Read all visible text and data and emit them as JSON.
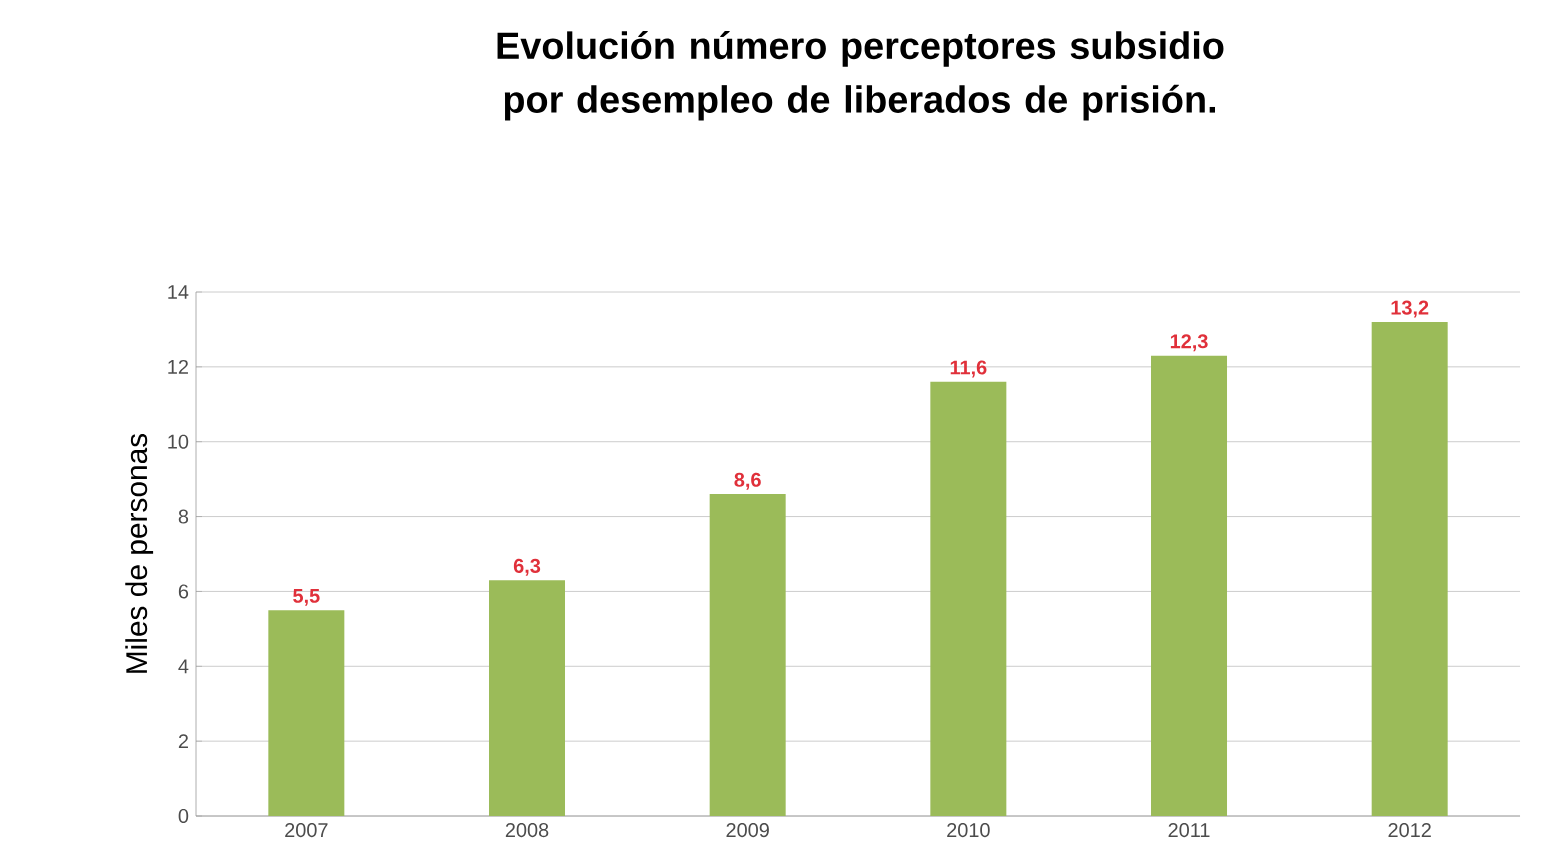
{
  "chart_data": {
    "type": "bar",
    "title": "Evolución número perceptores subsidio por desempleo de liberados de prisión.",
    "ylabel": "Miles de personas",
    "categories": [
      "2007",
      "2008",
      "2009",
      "2010",
      "2011",
      "2012"
    ],
    "values": [
      5.5,
      6.3,
      8.6,
      11.6,
      12.3,
      13.2
    ],
    "value_labels": [
      "5,5",
      "6,3",
      "8,6",
      "11,6",
      "12,3",
      "13,2"
    ],
    "color": "#9bbb59",
    "ylim": [
      0,
      14
    ],
    "yticks": [
      0,
      2,
      4,
      6,
      8,
      10,
      12,
      14
    ],
    "grid": "y"
  }
}
